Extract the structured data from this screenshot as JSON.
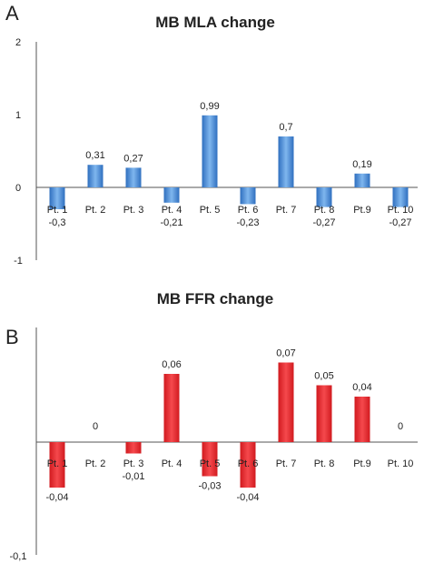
{
  "chart_data": [
    {
      "type": "bar",
      "panel": "A",
      "title": "MB MLA change",
      "categories": [
        "Pt. 1",
        "Pt. 2",
        "Pt. 3",
        "Pt. 4",
        "Pt. 5",
        "Pt. 6",
        "Pt. 7",
        "Pt. 8",
        "Pt.9",
        "Pt. 10"
      ],
      "values": [
        -0.3,
        0.31,
        0.27,
        -0.21,
        0.99,
        -0.23,
        0.7,
        -0.27,
        0.19,
        -0.27
      ],
      "value_labels": [
        "-0,3",
        "0,31",
        "0,27",
        "-0,21",
        "0,99",
        "-0,23",
        "0,7",
        "-0,27",
        "0,19",
        "-0,27"
      ],
      "ylim": [
        -1,
        2
      ],
      "yticks": [
        2,
        1,
        0,
        -1
      ],
      "ytick_labels": [
        "2",
        "1",
        "0",
        "-1"
      ],
      "bar_color": "#4a8fd6",
      "grid": false
    },
    {
      "type": "bar",
      "panel": "B",
      "title": "MB FFR change",
      "categories": [
        "Pt. 1",
        "Pt. 2",
        "Pt. 3",
        "Pt. 4",
        "Pt. 5",
        "Pt. 6",
        "Pt. 7",
        "Pt. 8",
        "Pt.9",
        "Pt. 10"
      ],
      "values": [
        -0.04,
        0,
        -0.01,
        0.06,
        -0.03,
        -0.04,
        0.07,
        0.05,
        0.04,
        0
      ],
      "value_labels": [
        "-0,04",
        "0",
        "-0,01",
        "0,06",
        "-0,03",
        "-0,04",
        "0,07",
        "0,05",
        "0,04",
        "0"
      ],
      "ylim": [
        -0.1,
        0.1
      ],
      "yticks": [
        -0.1
      ],
      "ytick_labels": [
        "-0,1"
      ],
      "bar_color": "#e8262b",
      "grid": false
    }
  ]
}
